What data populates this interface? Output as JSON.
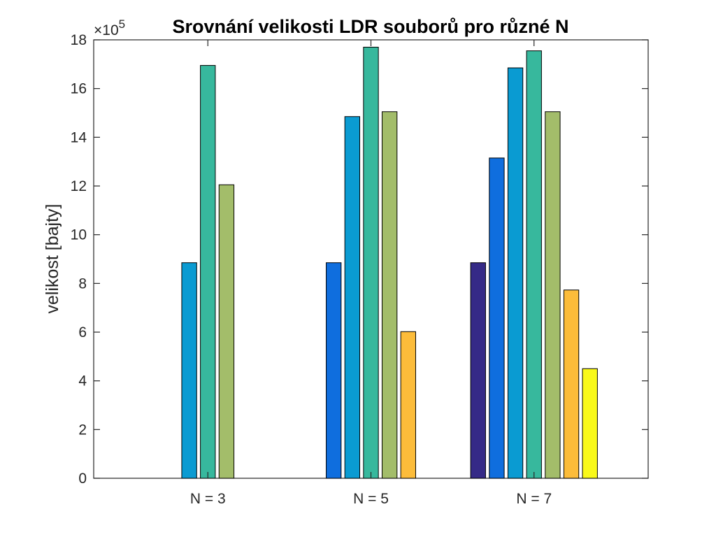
{
  "chart_data": {
    "type": "bar",
    "title": "Srovnání velikosti LDR souborů pro různé N",
    "xlabel": "",
    "ylabel": "velikost [bajty]",
    "y_exponent_base": "×10",
    "y_exponent_power": "5",
    "ylim": [
      0,
      18
    ],
    "yticks": [
      0,
      2,
      4,
      6,
      8,
      10,
      12,
      14,
      16,
      18
    ],
    "ytick_labels": [
      "0",
      "2",
      "4",
      "6",
      "8",
      "10",
      "12",
      "14",
      "16",
      "18"
    ],
    "categories": [
      "N = 3",
      "N = 5",
      "N = 7"
    ],
    "series_colors": [
      "#352a87",
      "#0f6ede",
      "#0a9bd2",
      "#37b89d",
      "#a3bd6a",
      "#fcbc3a",
      "#f9f919"
    ],
    "series": [
      {
        "values": [
          0,
          0,
          8.85
        ]
      },
      {
        "values": [
          0,
          8.85,
          13.15
        ]
      },
      {
        "values": [
          8.85,
          14.85,
          16.85
        ]
      },
      {
        "values": [
          16.95,
          17.7,
          17.55
        ]
      },
      {
        "values": [
          12.05,
          15.05,
          15.05
        ]
      },
      {
        "values": [
          0,
          6.02,
          7.73
        ]
      },
      {
        "values": [
          0,
          0,
          4.5
        ]
      }
    ],
    "grid": false,
    "legend": "none"
  }
}
